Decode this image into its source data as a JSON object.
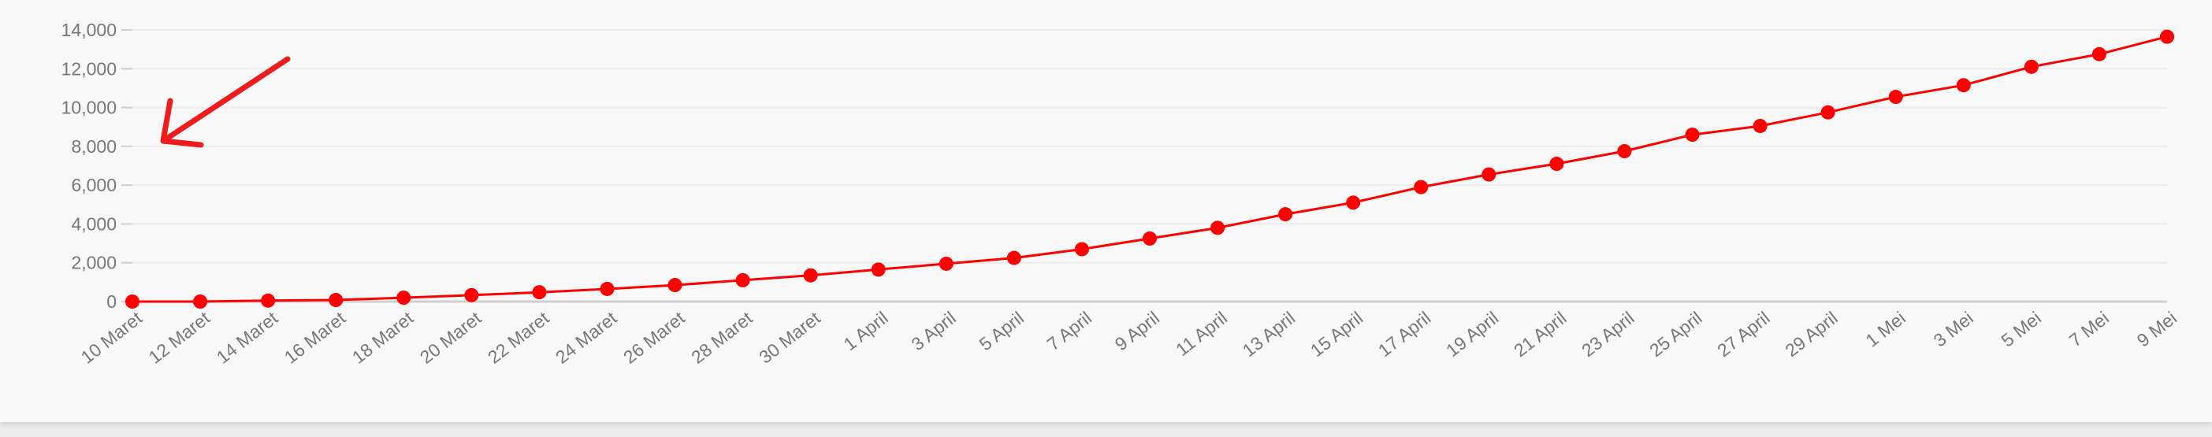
{
  "chart_data": {
    "type": "line",
    "title": "",
    "xlabel": "",
    "ylabel": "",
    "ylim": [
      0,
      14000
    ],
    "yticks": [
      "0",
      "2,000",
      "4,000",
      "6,000",
      "8,000",
      "10,000",
      "12,000",
      "14,000"
    ],
    "grid": true,
    "legend": "none",
    "categories": [
      "10 Maret",
      "12 Maret",
      "14 Maret",
      "16 Maret",
      "18 Maret",
      "20 Maret",
      "22 Maret",
      "24 Maret",
      "26 Maret",
      "28 Maret",
      "30 Maret",
      "1 April",
      "3 April",
      "5 April",
      "7 April",
      "9 April",
      "11 April",
      "13 April",
      "15 April",
      "17 April",
      "19 April",
      "21 April",
      "23 April",
      "25 April",
      "27 April",
      "29 April",
      "1 Mei",
      "3 Mei",
      "5 Mei",
      "7 Mei",
      "9 Mei"
    ],
    "series": [
      {
        "color": "#ff0000",
        "values": [
          0,
          0,
          50,
          80,
          200,
          330,
          480,
          650,
          850,
          1100,
          1350,
          1650,
          1950,
          2250,
          2700,
          3250,
          3800,
          4500,
          5100,
          5900,
          6550,
          7100,
          7750,
          8600,
          9050,
          9750,
          10550,
          11150,
          12100,
          12750,
          13650
        ]
      }
    ],
    "annotation": {
      "type": "arrow",
      "color": "#ee1c1c"
    }
  }
}
